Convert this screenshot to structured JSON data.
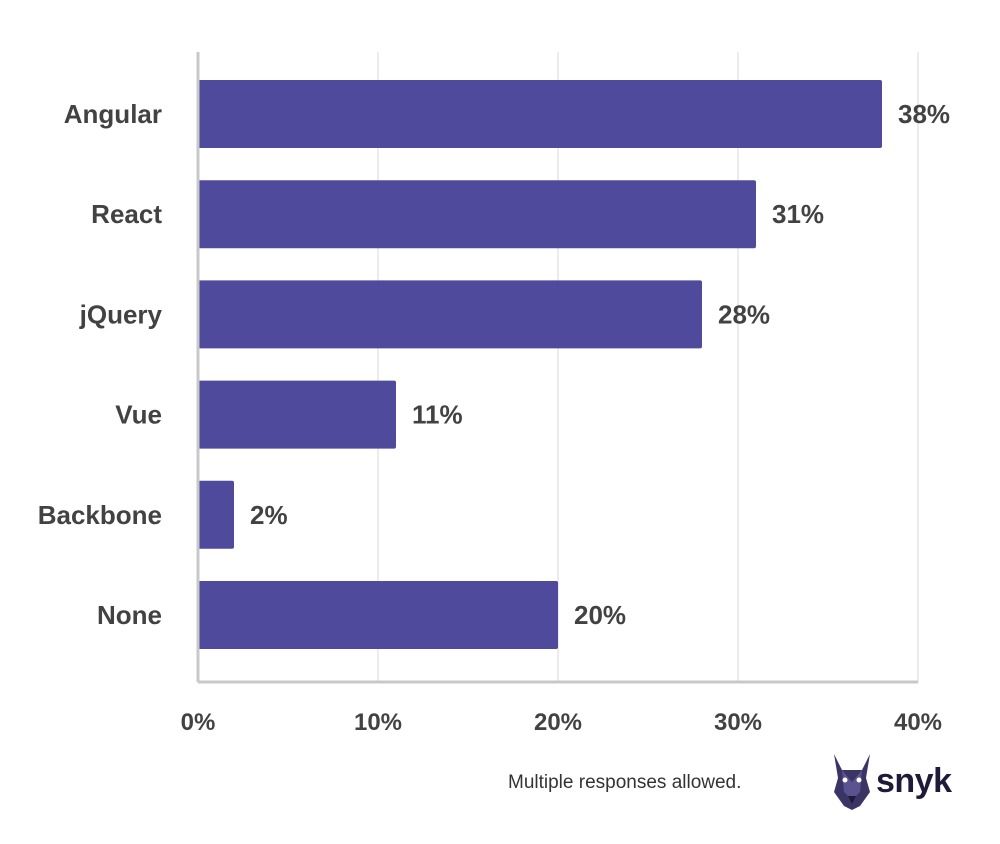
{
  "chart_data": {
    "type": "bar",
    "orientation": "horizontal",
    "categories": [
      "Angular",
      "React",
      "jQuery",
      "Vue",
      "Backbone",
      "None"
    ],
    "values": [
      38,
      31,
      28,
      11,
      2,
      20
    ],
    "value_labels": [
      "38%",
      "31%",
      "28%",
      "11%",
      "2%",
      "20%"
    ],
    "xlim": [
      0,
      40
    ],
    "xticks": [
      0,
      10,
      20,
      30,
      40
    ],
    "xtick_labels": [
      "0%",
      "10%",
      "20%",
      "30%",
      "40%"
    ],
    "grid": "vertical",
    "bar_color": "#4f4a9c"
  },
  "note": "Multiple responses allowed.",
  "brand": {
    "name": "snyk",
    "icon": "doberman-logo-icon"
  }
}
